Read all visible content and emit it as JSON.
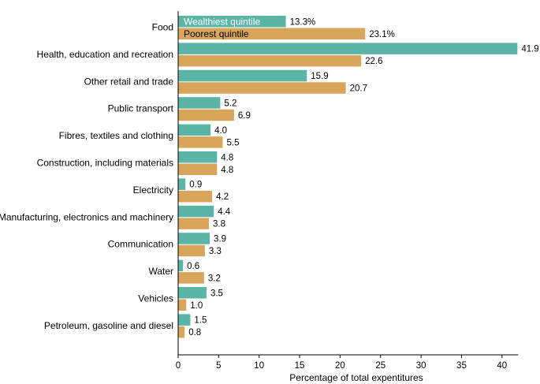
{
  "chart_data": {
    "type": "bar",
    "orientation": "horizontal",
    "title": "",
    "xlabel": "Percentage of total expentitures",
    "ylabel": "",
    "xlim": [
      0,
      42
    ],
    "xticks": [
      0,
      5,
      10,
      15,
      20,
      25,
      30,
      35,
      40
    ],
    "grid": false,
    "legend_position": "inside top-left of first category",
    "categories": [
      "Food",
      "Health, education and recreation",
      "Other retail and trade",
      "Public transport",
      "Fibres, textiles and clothing",
      "Construction, including materials",
      "Electricity",
      "Manufacturing, electronics and machinery",
      "Communication",
      "Water",
      "Vehicles",
      "Petroleum, gasoline and diesel"
    ],
    "series": [
      {
        "name": "Wealthiest quintile",
        "color": "#5bb5a6",
        "values": [
          13.3,
          41.9,
          15.9,
          5.2,
          4.0,
          4.8,
          0.9,
          4.4,
          3.9,
          0.6,
          3.5,
          1.5
        ],
        "labels": [
          "13.3%",
          "41.9",
          "15.9",
          "5.2",
          "4.0",
          "4.8",
          "0.9",
          "4.4",
          "3.9",
          "0.6",
          "3.5",
          "1.5"
        ]
      },
      {
        "name": "Poorest quintile",
        "color": "#d9a55a",
        "values": [
          23.1,
          22.6,
          20.7,
          6.9,
          5.5,
          4.8,
          4.2,
          3.8,
          3.3,
          3.2,
          1.0,
          0.8
        ],
        "labels": [
          "23.1%",
          "22.6",
          "20.7",
          "6.9",
          "5.5",
          "4.8",
          "4.2",
          "3.8",
          "3.3",
          "3.2",
          "1.0",
          "0.8"
        ]
      }
    ]
  }
}
